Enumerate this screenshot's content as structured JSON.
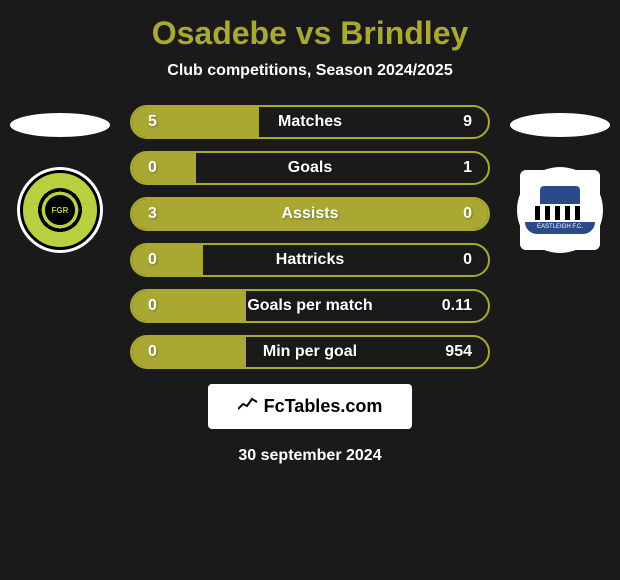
{
  "title": "Osadebe vs Brindley",
  "subtitle": "Club competitions, Season 2024/2025",
  "player_left": {
    "name": "Osadebe",
    "club": "Forest Green Rovers",
    "club_short": "FGR"
  },
  "player_right": {
    "name": "Brindley",
    "club": "Eastleigh FC",
    "club_short": "EASTLEIGH F.C."
  },
  "stats": [
    {
      "label": "Matches",
      "left_value": "5",
      "right_value": "9",
      "left_num": 5,
      "right_num": 9,
      "left_pct": 35.7,
      "border_color": "#a8a833",
      "fill_color": "#a8a833",
      "empty_color": "transparent"
    },
    {
      "label": "Goals",
      "left_value": "0",
      "right_value": "1",
      "left_num": 0,
      "right_num": 1,
      "left_pct": 18,
      "border_color": "#a8a833",
      "fill_color": "#a8a833",
      "empty_color": "transparent"
    },
    {
      "label": "Assists",
      "left_value": "3",
      "right_value": "0",
      "left_num": 3,
      "right_num": 0,
      "left_pct": 100,
      "border_color": "#a8a833",
      "fill_color": "#a8a833",
      "empty_color": "transparent"
    },
    {
      "label": "Hattricks",
      "left_value": "0",
      "right_value": "0",
      "left_num": 0,
      "right_num": 0,
      "left_pct": 20,
      "border_color": "#a8a833",
      "fill_color": "#a8a833",
      "empty_color": "transparent"
    },
    {
      "label": "Goals per match",
      "left_value": "0",
      "right_value": "0.11",
      "left_num": 0,
      "right_num": 0.11,
      "left_pct": 32,
      "border_color": "#a8a833",
      "fill_color": "#a8a833",
      "empty_color": "transparent"
    },
    {
      "label": "Min per goal",
      "left_value": "0",
      "right_value": "954",
      "left_num": 0,
      "right_num": 954,
      "left_pct": 32,
      "border_color": "#a8a833",
      "fill_color": "#a8a833",
      "empty_color": "transparent"
    }
  ],
  "bar_style": {
    "height": 34,
    "border_radius": 17,
    "border_width": 2,
    "gap": 12,
    "label_fontsize": 16,
    "value_fontsize": 16,
    "text_color": "#ffffff"
  },
  "colors": {
    "background": "#1a1a1a",
    "accent": "#a8a833",
    "title_color": "#a8a833",
    "text_white": "#ffffff",
    "badge_bg": "#ffffff",
    "badge_text": "#000000"
  },
  "footer": {
    "site": "FcTables.com",
    "date": "30 september 2024"
  }
}
